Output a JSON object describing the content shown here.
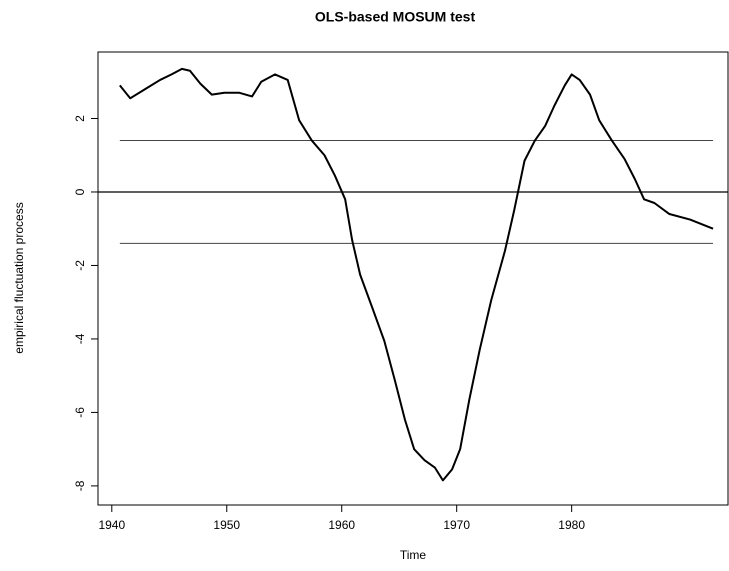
{
  "chart_data": {
    "type": "line",
    "title": "OLS-based MOSUM test",
    "x_label": "Time",
    "y_label": "empirical fluctuation process",
    "x": [
      1940.7,
      1941.6,
      1942.9,
      1944.2,
      1945.2,
      1946.1,
      1946.8,
      1947.7,
      1948.7,
      1949.8,
      1951.1,
      1952.2,
      1953.0,
      1954.2,
      1955.3,
      1956.3,
      1957.4,
      1958.5,
      1959.4,
      1960.3,
      1960.9,
      1961.6,
      1962.6,
      1963.7,
      1964.6,
      1965.5,
      1966.3,
      1967.2,
      1968.1,
      1968.8,
      1969.6,
      1970.3,
      1971.1,
      1972.0,
      1973.0,
      1974.2,
      1975.0,
      1975.9,
      1976.8,
      1977.7,
      1978.5,
      1979.4,
      1980.0,
      1980.7,
      1981.6,
      1982.4,
      1983.5,
      1984.6,
      1985.5,
      1986.3,
      1987.2,
      1988.5,
      1990.3,
      1992.3
    ],
    "values": [
      2.9,
      2.55,
      2.8,
      3.05,
      3.2,
      3.35,
      3.3,
      2.95,
      2.65,
      2.7,
      2.7,
      2.6,
      3.0,
      3.2,
      3.05,
      1.95,
      1.4,
      1.0,
      0.45,
      -0.2,
      -1.3,
      -2.25,
      -3.1,
      -4.05,
      -5.1,
      -6.2,
      -7.0,
      -7.3,
      -7.5,
      -7.85,
      -7.55,
      -7.0,
      -5.65,
      -4.3,
      -2.95,
      -1.6,
      -0.5,
      0.85,
      1.4,
      1.8,
      2.35,
      2.9,
      3.2,
      3.05,
      2.65,
      1.95,
      1.4,
      0.9,
      0.35,
      -0.2,
      -0.3,
      -0.6,
      -0.75,
      -1.0
    ],
    "color": "#000000",
    "zero_line": 0,
    "boundaries": [
      1.4,
      -1.4
    ],
    "xlim": [
      1938.8,
      1993.6
    ],
    "ylim": [
      -8.52,
      3.81
    ],
    "xticks": [
      1940,
      1950,
      1960,
      1970,
      1980
    ],
    "yticks": [
      -8,
      -6,
      -4,
      -2,
      0,
      2
    ]
  }
}
